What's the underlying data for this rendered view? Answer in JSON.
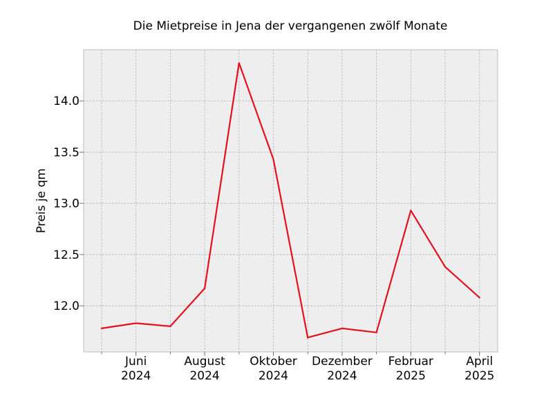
{
  "chart_data": {
    "type": "line",
    "title": "Die Mietpreise in Jena der vergangenen zwölf Monate",
    "xlabel": "",
    "ylabel": "Preis je qm",
    "x": [
      "2024-05",
      "2024-06",
      "2024-07",
      "2024-08",
      "2024-09",
      "2024-10",
      "2024-11",
      "2024-12",
      "2025-01",
      "2025-02",
      "2025-03",
      "2025-04"
    ],
    "series": [
      {
        "values": [
          11.78,
          11.83,
          11.8,
          12.17,
          14.37,
          13.43,
          11.69,
          11.78,
          11.74,
          12.93,
          12.38,
          12.08
        ],
        "color": "#e3101c"
      }
    ],
    "ylim": [
      11.55,
      14.5
    ],
    "yticks": [
      {
        "value": 12.0,
        "label": "12.0"
      },
      {
        "value": 12.5,
        "label": "12.5"
      },
      {
        "value": 13.0,
        "label": "13.0"
      },
      {
        "value": 13.5,
        "label": "13.5"
      },
      {
        "value": 14.0,
        "label": "14.0"
      }
    ],
    "xticks": [
      {
        "x": "2024-06",
        "label1": "Juni",
        "label2": "2024"
      },
      {
        "x": "2024-08",
        "label1": "August",
        "label2": "2024"
      },
      {
        "x": "2024-10",
        "label1": "Oktober",
        "label2": "2024"
      },
      {
        "x": "2024-12",
        "label1": "Dezember",
        "label2": "2024"
      },
      {
        "x": "2025-02",
        "label1": "Februar",
        "label2": "2025"
      },
      {
        "x": "2025-04",
        "label1": "April",
        "label2": "2025"
      }
    ],
    "grid": true,
    "colors": {
      "background": "#eeeeee",
      "grid": "#b0b0b0",
      "line": "#e3101c"
    }
  }
}
